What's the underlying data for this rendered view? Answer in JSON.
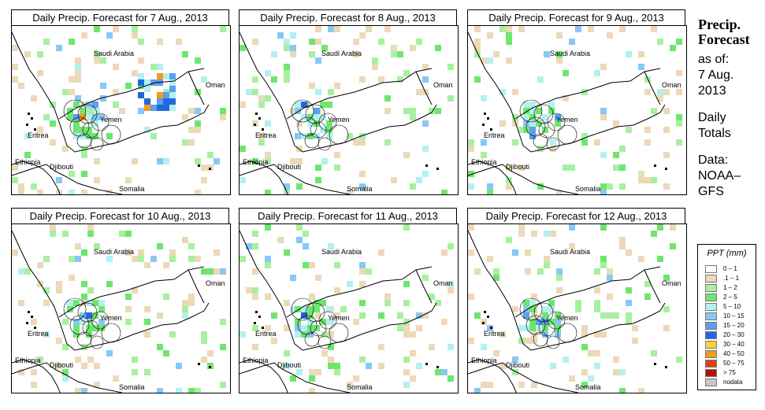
{
  "panels": [
    {
      "title": "Daily Precip. Forecast for  7 Aug., 2013"
    },
    {
      "title": "Daily Precip. Forecast for  8 Aug., 2013"
    },
    {
      "title": "Daily Precip. Forecast for  9 Aug., 2013"
    },
    {
      "title": "Daily Precip. Forecast for  10 Aug., 2013"
    },
    {
      "title": "Daily Precip. Forecast for  11 Aug., 2013"
    },
    {
      "title": "Daily Precip. Forecast for  12 Aug., 2013"
    }
  ],
  "map_labels": {
    "saudi": "Saudi Arabia",
    "oman": "Oman",
    "yemen": "Yemen",
    "eritrea": "Eritrea",
    "ethiopia": "Ethiopia",
    "djibouti": "Djibouti",
    "somalia": "Somalia"
  },
  "side": {
    "heading1": "Precip.",
    "heading2": "Forecast",
    "line1": "as of:",
    "line2": "7 Aug.",
    "line3": "2013",
    "line4": "Daily",
    "line5": "Totals",
    "line6": "Data:",
    "line7": "NOAA–",
    "line8": "GFS"
  },
  "legend": {
    "title": "PPT (mm)",
    "items": [
      {
        "label": "0 – 1",
        "color": "#ffffff"
      },
      {
        "label": ".1 – 1",
        "color": "#ecd9b8"
      },
      {
        "label": "1 – 2",
        "color": "#a8f0a0"
      },
      {
        "label": "2 – 5",
        "color": "#6ee66e"
      },
      {
        "label": "5 – 10",
        "color": "#b4f0f0"
      },
      {
        "label": "10 – 15",
        "color": "#87c8f5"
      },
      {
        "label": "15 – 20",
        "color": "#5a9ff0"
      },
      {
        "label": "20 – 30",
        "color": "#2566e0"
      },
      {
        "label": "30 – 40",
        "color": "#f5d040"
      },
      {
        "label": "40 – 50",
        "color": "#f39a18"
      },
      {
        "label": "50 – 75",
        "color": "#e04010"
      },
      {
        "label": "> 75",
        "color": "#b01010"
      },
      {
        "label": "nodata",
        "color": "#c8c8c8"
      }
    ]
  }
}
